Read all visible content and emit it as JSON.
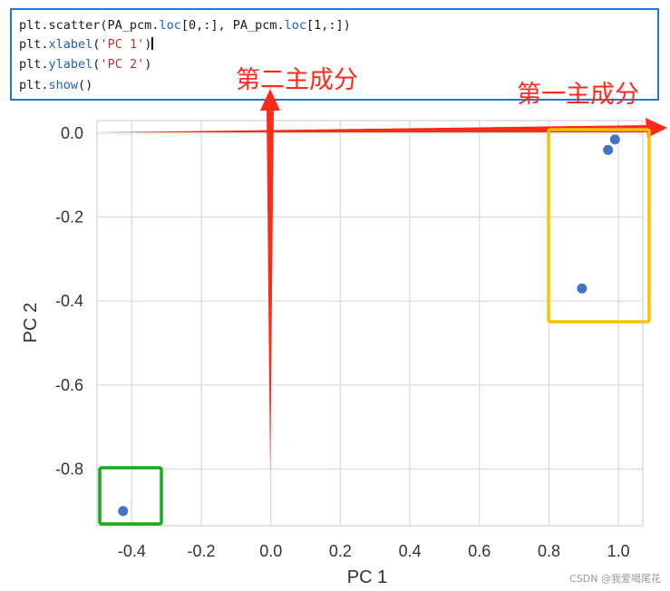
{
  "code": {
    "line1": {
      "fn": "plt",
      "call": ".scatter(PA_pcm.",
      "loc1": "loc",
      "args1": "[0,:], PA_pcm.",
      "loc2": "loc",
      "args2": "[1,:])"
    },
    "line2": {
      "pre": "plt.",
      "fn": "xlabel",
      "open": "(",
      "str": "'PC 1'",
      "close": ")"
    },
    "line3": {
      "pre": "plt.",
      "fn": "ylabel",
      "open": "(",
      "str": "'PC 2'",
      "close": ")"
    },
    "line4": {
      "pre": "plt.",
      "fn": "show",
      "rest": "()"
    }
  },
  "annotations": {
    "second_pc": "第二主成分",
    "first_pc": "第一主成分"
  },
  "watermark": "CSDN @我爱喝尾花",
  "colors": {
    "point": "#4472c4",
    "arrow": "#ff2a1a",
    "box_orange": "#ffc000",
    "box_green": "#1aaa1a",
    "grid": "#d9d9d9"
  },
  "chart_data": {
    "type": "scatter",
    "title": "",
    "xlabel": "PC 1",
    "ylabel": "PC 2",
    "xlim": [
      -0.5,
      1.07
    ],
    "ylim": [
      -0.935,
      0.03
    ],
    "grid": true,
    "x_ticks": [
      -0.4,
      -0.2,
      0.0,
      0.2,
      0.4,
      0.6,
      0.8,
      1.0
    ],
    "x_tick_labels": [
      "-0.4",
      "-0.2",
      "0.0",
      "0.2",
      "0.4",
      "0.6",
      "0.8",
      "1.0"
    ],
    "y_ticks": [
      0.0,
      -0.2,
      -0.4,
      -0.6,
      -0.8
    ],
    "y_tick_labels": [
      "0.0",
      "-0.2",
      "-0.4",
      "-0.6",
      "-0.8"
    ],
    "points": [
      {
        "x": 0.99,
        "y": -0.015
      },
      {
        "x": 0.97,
        "y": -0.04
      },
      {
        "x": 0.895,
        "y": -0.37
      },
      {
        "x": -0.425,
        "y": -0.9
      }
    ]
  }
}
